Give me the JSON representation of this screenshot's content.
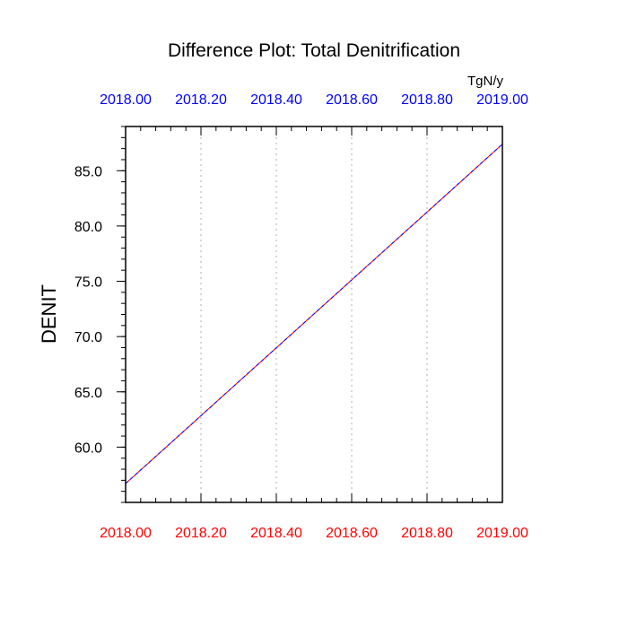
{
  "chart_data": {
    "type": "line",
    "title": "Difference Plot: Total Denitrification",
    "units": "TgN/y",
    "ylabel": "DENIT",
    "xlim": [
      2018.0,
      2019.0
    ],
    "ylim": [
      55.0,
      89.0
    ],
    "x_ticks": [
      {
        "value": 2018.0,
        "label": "2018.00"
      },
      {
        "value": 2018.2,
        "label": "2018.20"
      },
      {
        "value": 2018.4,
        "label": "2018.40"
      },
      {
        "value": 2018.6,
        "label": "2018.60"
      },
      {
        "value": 2018.8,
        "label": "2018.80"
      },
      {
        "value": 2019.0,
        "label": "2019.00"
      }
    ],
    "y_ticks": [
      {
        "value": 60.0,
        "label": "60.0"
      },
      {
        "value": 65.0,
        "label": "65.0"
      },
      {
        "value": 70.0,
        "label": "70.0"
      },
      {
        "value": 75.0,
        "label": "75.0"
      },
      {
        "value": 80.0,
        "label": "80.0"
      },
      {
        "value": 85.0,
        "label": "85.0"
      }
    ],
    "y_minor_step": 1.0,
    "grid": "vertical dotted",
    "top_axis_color": "#0000ff",
    "bottom_axis_color": "#ff0000",
    "series": [
      {
        "x": [
          2018.0,
          2019.0
        ],
        "y": [
          56.7,
          87.4
        ],
        "color": "#ff0000",
        "style": "solid"
      },
      {
        "x": [
          2018.0,
          2019.0
        ],
        "y": [
          56.7,
          87.4
        ],
        "color": "#0000ff",
        "style": "dashed"
      }
    ]
  }
}
